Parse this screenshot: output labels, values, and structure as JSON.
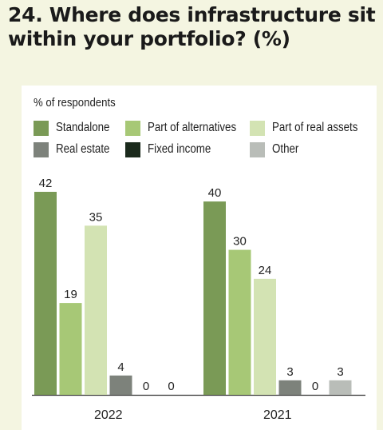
{
  "title": "24. Where does infrastructure sit within your portfolio? (%)",
  "colors": {
    "background": "#f4f5e1",
    "panel": "#ffffff",
    "standalone": "#7a9a56",
    "alternatives": "#a7c876",
    "real_assets": "#d3e3b3",
    "real_estate": "#7d827b",
    "fixed_income": "#1b2a1c",
    "other": "#b9bdb8"
  },
  "chart_data": {
    "type": "bar",
    "subtitle": "% of respondents",
    "categories": [
      "2022",
      "2021"
    ],
    "series": [
      {
        "name": "Standalone",
        "values": [
          42,
          40
        ],
        "color": "#7a9a56"
      },
      {
        "name": "Part of alternatives",
        "values": [
          19,
          30
        ],
        "color": "#a7c876"
      },
      {
        "name": "Part of real assets",
        "values": [
          35,
          24
        ],
        "color": "#d3e3b3"
      },
      {
        "name": "Real estate",
        "values": [
          4,
          3
        ],
        "color": "#7d827b"
      },
      {
        "name": "Fixed income",
        "values": [
          0,
          0
        ],
        "color": "#1b2a1c"
      },
      {
        "name": "Other",
        "values": [
          0,
          3
        ],
        "color": "#b9bdb8"
      }
    ],
    "ylim": [
      0,
      42
    ],
    "grid": false,
    "legend_position": "top-left"
  }
}
